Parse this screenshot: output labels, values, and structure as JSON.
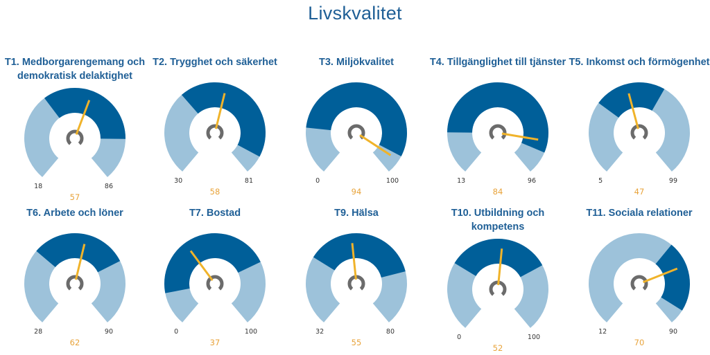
{
  "page": {
    "title": "Livskvalitet"
  },
  "colors": {
    "band_light": "#9dc2da",
    "band_dark": "#005f99",
    "needle": "#f0b32a",
    "pivot": "#6b6b6b",
    "value_text": "#e8a33a",
    "title_text": "#1f5f96"
  },
  "chart_data": [
    {
      "type": "gauge",
      "title": "T1. Medborgarengemang och demokratisk delaktighet",
      "min": 18,
      "max": 86,
      "value": 57,
      "band": [
        43,
        74
      ]
    },
    {
      "type": "gauge",
      "title": "T2. Trygghet och säkerhet",
      "min": 30,
      "max": 81,
      "value": 58,
      "band": [
        48,
        77
      ]
    },
    {
      "type": "gauge",
      "title": "T3. Miljökvalitet",
      "min": 0,
      "max": 100,
      "value": 94,
      "band": [
        20,
        92
      ]
    },
    {
      "type": "gauge",
      "title": "T4. Tillgänglighet till tjänster",
      "min": 13,
      "max": 96,
      "value": 84,
      "band": [
        28,
        88
      ]
    },
    {
      "type": "gauge",
      "title": "T5. Inkomst och förmögenhet",
      "min": 5,
      "max": 99,
      "value": 47,
      "band": [
        34,
        62
      ]
    },
    {
      "type": "gauge",
      "title": "T6. Arbete och löner",
      "min": 28,
      "max": 90,
      "value": 62,
      "band": [
        48,
        73
      ]
    },
    {
      "type": "gauge",
      "title": "T7. Bostad",
      "min": 0,
      "max": 100,
      "value": 37,
      "band": [
        14,
        73
      ]
    },
    {
      "type": "gauge",
      "title": "T9. Hälsa",
      "min": 32,
      "max": 80,
      "value": 55,
      "band": [
        46,
        69
      ]
    },
    {
      "type": "gauge",
      "title": "T10. Utbildning och kompetens",
      "min": 0,
      "max": 100,
      "value": 52,
      "band": [
        29,
        72
      ]
    },
    {
      "type": "gauge",
      "title": "T11. Sociala relationer",
      "min": 12,
      "max": 90,
      "value": 70,
      "band": [
        62,
        85
      ]
    }
  ]
}
